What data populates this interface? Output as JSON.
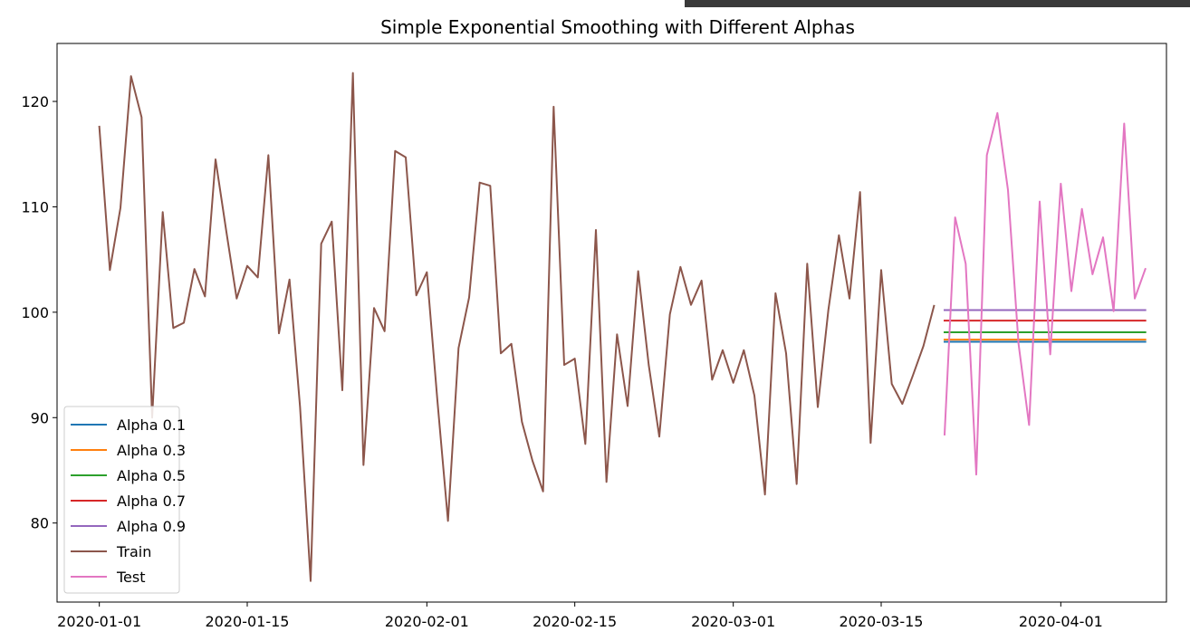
{
  "chart_data": {
    "type": "line",
    "title": "Simple Exponential Smoothing with Different Alphas",
    "xlabel": "",
    "ylabel": "",
    "x_start_date": "2020-01-01",
    "xlim": [
      "2019-12-28",
      "2020-04-11"
    ],
    "ylim": [
      72.5,
      125.5
    ],
    "grid": false,
    "legend_position": "lower left",
    "x_ticks": [
      {
        "date": "2020-01-01",
        "label": "2020-01-01"
      },
      {
        "date": "2020-01-15",
        "label": "2020-01-15"
      },
      {
        "date": "2020-02-01",
        "label": "2020-02-01"
      },
      {
        "date": "2020-02-15",
        "label": "2020-02-15"
      },
      {
        "date": "2020-03-01",
        "label": "2020-03-01"
      },
      {
        "date": "2020-03-15",
        "label": "2020-03-15"
      },
      {
        "date": "2020-04-01",
        "label": "2020-04-01"
      }
    ],
    "y_ticks": [
      80,
      90,
      100,
      110,
      120
    ],
    "series": [
      {
        "name": "Alpha 0.1",
        "color": "#1f77b4",
        "start": "2020-03-21",
        "end": "2020-04-09",
        "value": 97.2
      },
      {
        "name": "Alpha 0.3",
        "color": "#ff7f0e",
        "start": "2020-03-21",
        "end": "2020-04-09",
        "value": 97.4
      },
      {
        "name": "Alpha 0.5",
        "color": "#2ca02c",
        "start": "2020-03-21",
        "end": "2020-04-09",
        "value": 98.1
      },
      {
        "name": "Alpha 0.7",
        "color": "#d62728",
        "start": "2020-03-21",
        "end": "2020-04-09",
        "value": 99.2
      },
      {
        "name": "Alpha 0.9",
        "color": "#9467bd",
        "start": "2020-03-21",
        "end": "2020-04-09",
        "value": 100.2
      },
      {
        "name": "Train",
        "color": "#8c564b",
        "start": "2020-01-01",
        "values": [
          117.6,
          104.0,
          109.9,
          122.4,
          118.5,
          90.0,
          109.5,
          98.5,
          99.0,
          104.1,
          101.5,
          114.5,
          107.8,
          101.3,
          104.4,
          103.3,
          114.9,
          98.0,
          103.1,
          91.0,
          74.5,
          106.5,
          108.6,
          92.6,
          122.7,
          85.5,
          100.4,
          98.2,
          115.3,
          114.7,
          101.6,
          103.8,
          91.6,
          80.2,
          96.6,
          101.4,
          112.3,
          112.0,
          96.1,
          97.0,
          89.6,
          85.9,
          83.0,
          119.5,
          95.0,
          95.6,
          87.5,
          107.8,
          83.9,
          97.9,
          91.1,
          103.9,
          95.0,
          88.2,
          99.8,
          104.3,
          100.7,
          103.0,
          93.6,
          96.4,
          93.3,
          96.4,
          92.1,
          82.7,
          101.8,
          96.1,
          83.7,
          104.6,
          91.0,
          100.2,
          107.3,
          101.3,
          111.4,
          87.6,
          104.0,
          93.2,
          91.3,
          94.0,
          96.8,
          100.6
        ]
      },
      {
        "name": "Test",
        "color": "#e377c2",
        "start": "2020-03-21",
        "values": [
          88.4,
          109.0,
          104.6,
          84.6,
          114.9,
          118.9,
          111.6,
          97.0,
          89.3,
          110.5,
          96.0,
          112.2,
          102.0,
          109.8,
          103.6,
          107.1,
          100.1,
          117.9,
          101.3,
          104.1
        ]
      }
    ]
  }
}
